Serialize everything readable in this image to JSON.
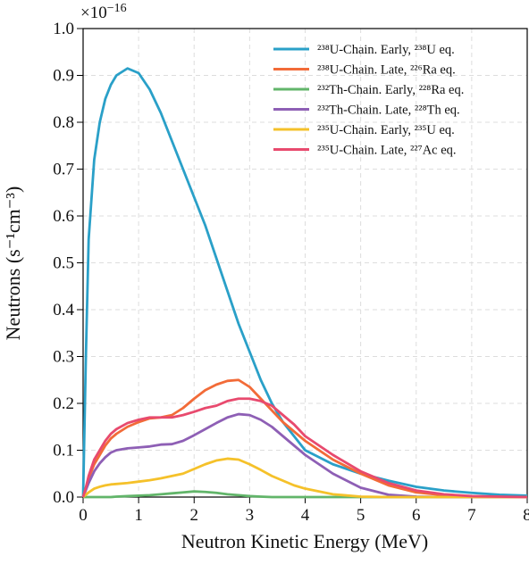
{
  "chart_data": {
    "type": "line",
    "xlabel": "Neutron Kinetic Energy (MeV)",
    "ylabel": "Neutrons (s⁻¹cm⁻³)",
    "y_offset_base": "×10",
    "y_offset_exp": "−16",
    "xlim": [
      0,
      8
    ],
    "ylim": [
      0,
      1.0
    ],
    "xticks": [
      0,
      1,
      2,
      3,
      4,
      5,
      6,
      7,
      8
    ],
    "yticks": [
      {
        "value": 0,
        "label": "0.0"
      },
      0.1,
      0.2,
      0.3,
      0.4,
      0.5,
      0.6,
      0.7,
      0.8,
      0.9,
      {
        "value": 1,
        "label": "1.0"
      }
    ],
    "grid": true,
    "legend": "upper right",
    "x": [
      0,
      0.05,
      0.1,
      0.2,
      0.3,
      0.4,
      0.5,
      0.6,
      0.8,
      1.0,
      1.2,
      1.4,
      1.6,
      1.8,
      2.0,
      2.2,
      2.4,
      2.6,
      2.8,
      3.0,
      3.2,
      3.4,
      3.6,
      3.8,
      4.0,
      4.5,
      5.0,
      5.5,
      6.0,
      6.5,
      7.0,
      7.5,
      8.0
    ],
    "series": [
      {
        "name": "²³⁸U-Chain. Early, ²³⁸U eq.",
        "color": "#2aa0c8",
        "values": [
          0,
          0.3,
          0.55,
          0.72,
          0.8,
          0.85,
          0.88,
          0.9,
          0.915,
          0.905,
          0.87,
          0.82,
          0.76,
          0.7,
          0.64,
          0.58,
          0.51,
          0.44,
          0.37,
          0.31,
          0.25,
          0.2,
          0.16,
          0.13,
          0.1,
          0.07,
          0.05,
          0.035,
          0.022,
          0.014,
          0.009,
          0.005,
          0.003
        ]
      },
      {
        "name": "²³⁸U-Chain. Late, ²²⁶Ra eq.",
        "color": "#f26b38",
        "values": [
          0,
          0.02,
          0.04,
          0.07,
          0.09,
          0.11,
          0.125,
          0.135,
          0.15,
          0.16,
          0.168,
          0.17,
          0.175,
          0.19,
          0.21,
          0.228,
          0.24,
          0.248,
          0.25,
          0.235,
          0.21,
          0.185,
          0.16,
          0.14,
          0.12,
          0.08,
          0.05,
          0.025,
          0.01,
          0.004,
          0.001,
          0,
          0
        ]
      },
      {
        "name": "²³²Th-Chain. Early, ²²⁸Ra eq.",
        "color": "#62b56a",
        "values": [
          0,
          0,
          0,
          0,
          0,
          0,
          0,
          0.001,
          0.002,
          0.003,
          0.004,
          0.006,
          0.008,
          0.01,
          0.012,
          0.011,
          0.009,
          0.006,
          0.004,
          0.002,
          0.001,
          0,
          0,
          0,
          0,
          0,
          0,
          0,
          0,
          0,
          0,
          0,
          0
        ]
      },
      {
        "name": "²³²Th-Chain. Late, ²²⁸Th eq.",
        "color": "#8e5fb5",
        "values": [
          0,
          0.015,
          0.03,
          0.055,
          0.072,
          0.085,
          0.095,
          0.1,
          0.104,
          0.106,
          0.108,
          0.112,
          0.113,
          0.12,
          0.132,
          0.145,
          0.158,
          0.17,
          0.177,
          0.175,
          0.165,
          0.15,
          0.13,
          0.11,
          0.09,
          0.05,
          0.02,
          0.005,
          0.001,
          0,
          0,
          0,
          0
        ]
      },
      {
        "name": "²³⁵U-Chain. Early, ²³⁵U eq.",
        "color": "#f5c12a",
        "values": [
          0,
          0.005,
          0.01,
          0.018,
          0.022,
          0.025,
          0.027,
          0.028,
          0.03,
          0.033,
          0.036,
          0.04,
          0.045,
          0.05,
          0.06,
          0.07,
          0.078,
          0.082,
          0.08,
          0.07,
          0.058,
          0.045,
          0.035,
          0.025,
          0.018,
          0.006,
          0.001,
          0,
          0,
          0,
          0,
          0,
          0
        ]
      },
      {
        "name": "²³⁵U-Chain. Late, ²²⁷Ac eq.",
        "color": "#e84a6e",
        "values": [
          0,
          0.02,
          0.045,
          0.08,
          0.1,
          0.12,
          0.135,
          0.145,
          0.158,
          0.165,
          0.17,
          0.17,
          0.17,
          0.175,
          0.182,
          0.19,
          0.195,
          0.205,
          0.21,
          0.21,
          0.205,
          0.195,
          0.175,
          0.155,
          0.13,
          0.09,
          0.055,
          0.03,
          0.014,
          0.006,
          0.002,
          0.001,
          0
        ]
      }
    ]
  }
}
